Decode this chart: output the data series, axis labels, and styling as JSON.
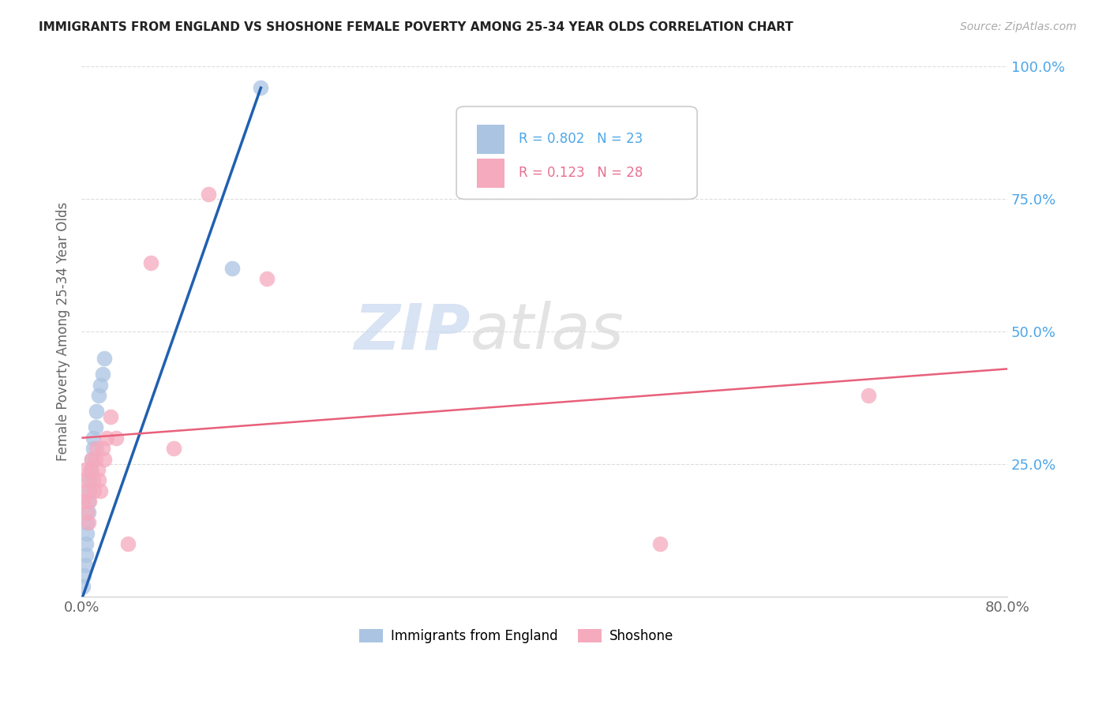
{
  "title": "IMMIGRANTS FROM ENGLAND VS SHOSHONE FEMALE POVERTY AMONG 25-34 YEAR OLDS CORRELATION CHART",
  "source": "Source: ZipAtlas.com",
  "ylabel": "Female Poverty Among 25-34 Year Olds",
  "xlim": [
    0.0,
    0.8
  ],
  "ylim": [
    0.0,
    1.0
  ],
  "xtick_pos": [
    0.0,
    0.2,
    0.4,
    0.6,
    0.8
  ],
  "xtick_labels": [
    "0.0%",
    "",
    "",
    "",
    "80.0%"
  ],
  "ytick_pos": [
    0.0,
    0.25,
    0.5,
    0.75,
    1.0
  ],
  "ytick_labels": [
    "",
    "25.0%",
    "50.0%",
    "75.0%",
    "100.0%"
  ],
  "england_color": "#aac4e2",
  "shoshone_color": "#f5aabe",
  "england_line_color": "#2060b0",
  "shoshone_line_color": "#e8607a",
  "legend_R_england": "0.802",
  "legend_N_england": "23",
  "legend_R_shoshone": "0.123",
  "legend_N_shoshone": "28",
  "watermark_zip": "ZIP",
  "watermark_atlas": "atlas",
  "england_x": [
    0.001,
    0.002,
    0.003,
    0.004,
    0.004,
    0.005,
    0.005,
    0.006,
    0.006,
    0.007,
    0.007,
    0.008,
    0.009,
    0.01,
    0.01,
    0.012,
    0.013,
    0.015,
    0.016,
    0.018,
    0.02,
    0.13,
    0.155
  ],
  "england_y": [
    0.02,
    0.04,
    0.06,
    0.08,
    0.1,
    0.12,
    0.14,
    0.16,
    0.18,
    0.2,
    0.22,
    0.24,
    0.26,
    0.28,
    0.3,
    0.32,
    0.35,
    0.38,
    0.4,
    0.42,
    0.45,
    0.62,
    0.96
  ],
  "shoshone_x": [
    0.001,
    0.002,
    0.003,
    0.004,
    0.005,
    0.006,
    0.007,
    0.008,
    0.009,
    0.01,
    0.011,
    0.012,
    0.013,
    0.014,
    0.015,
    0.016,
    0.018,
    0.02,
    0.022,
    0.025,
    0.03,
    0.04,
    0.06,
    0.08,
    0.11,
    0.16,
    0.5,
    0.68
  ],
  "shoshone_y": [
    0.18,
    0.22,
    0.24,
    0.2,
    0.16,
    0.14,
    0.18,
    0.24,
    0.26,
    0.22,
    0.2,
    0.26,
    0.28,
    0.24,
    0.22,
    0.2,
    0.28,
    0.26,
    0.3,
    0.34,
    0.3,
    0.1,
    0.63,
    0.28,
    0.76,
    0.6,
    0.1,
    0.38
  ],
  "england_line_x": [
    0.001,
    0.155
  ],
  "england_line_y": [
    0.0,
    0.96
  ],
  "shoshone_line_x": [
    0.001,
    0.8
  ],
  "shoshone_line_y": [
    0.3,
    0.43
  ]
}
